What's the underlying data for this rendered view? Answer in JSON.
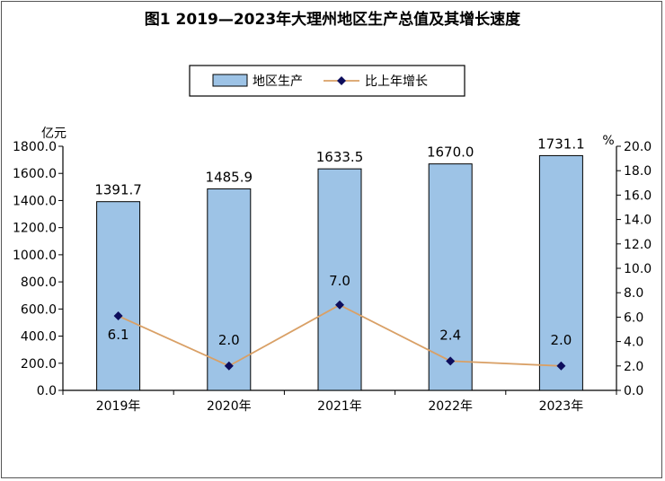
{
  "chart_data": {
    "type": "bar",
    "title": "图1  2019—2023年大理州地区生产总值及其增长速度",
    "categories": [
      "2019年",
      "2020年",
      "2021年",
      "2022年",
      "2023年"
    ],
    "series": [
      {
        "name": "地区生产",
        "type": "bar",
        "axis": "left",
        "values": [
          1391.7,
          1485.9,
          1633.5,
          1670.0,
          1731.1
        ],
        "labels": [
          "1391.7",
          "1485.9",
          "1633.5",
          "1670.0",
          "1731.1"
        ]
      },
      {
        "name": "比上年增长",
        "type": "line",
        "axis": "right",
        "values": [
          6.1,
          2.0,
          7.0,
          2.4,
          2.0
        ],
        "labels": [
          "6.1",
          "2.0",
          "7.0",
          "2.4",
          "2.0"
        ]
      }
    ],
    "y_left": {
      "unit": "亿元",
      "ylim": [
        0,
        1800
      ],
      "ticks": [
        "0.0",
        "200.0",
        "400.0",
        "600.0",
        "800.0",
        "1000.0",
        "1200.0",
        "1400.0",
        "1600.0",
        "1800.0"
      ]
    },
    "y_right": {
      "unit": "%",
      "ylim": [
        0,
        20
      ],
      "ticks": [
        "0.0",
        "2.0",
        "4.0",
        "6.0",
        "8.0",
        "10.0",
        "12.0",
        "14.0",
        "16.0",
        "18.0",
        "20.0"
      ]
    },
    "legend": {
      "position": "top-center"
    },
    "grid": false,
    "colors": {
      "bar_fill": "#9dc3e6",
      "bar_stroke": "#000000",
      "line": "#d9a066",
      "marker": "#0d0d5c"
    }
  }
}
